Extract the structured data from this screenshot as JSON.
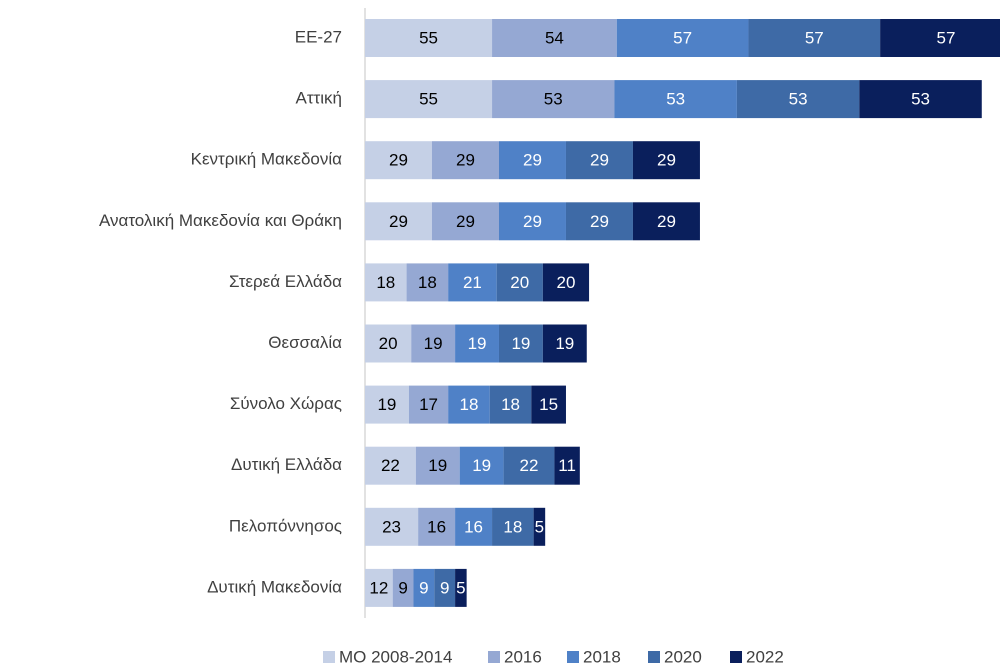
{
  "chart_data": {
    "type": "stacked-bar-horizontal",
    "categories": [
      "ΕΕ-27",
      "Αττική",
      "Κεντρική Μακεδονία",
      "Ανατολική Μακεδονία και Θράκη",
      "Στερεά Ελλάδα",
      "Θεσσαλία",
      "Σύνολο Χώρας",
      "Δυτική Ελλάδα",
      "Πελοπόννησος",
      "Δυτική Μακεδονία"
    ],
    "series": [
      {
        "name": "ΜΟ 2008-2014",
        "color": "#c5d0e6",
        "values": [
          55,
          55,
          29,
          29,
          18,
          20,
          19,
          22,
          23,
          12
        ]
      },
      {
        "name": "2016",
        "color": "#95a8d3",
        "values": [
          54,
          53,
          29,
          29,
          18,
          19,
          17,
          19,
          16,
          9
        ]
      },
      {
        "name": "2018",
        "color": "#4f81c7",
        "values": [
          57,
          53,
          29,
          29,
          21,
          19,
          18,
          19,
          16,
          9
        ]
      },
      {
        "name": "2020",
        "color": "#3e6aa6",
        "values": [
          57,
          53,
          29,
          29,
          20,
          19,
          18,
          22,
          18,
          9
        ]
      },
      {
        "name": "2022",
        "color": "#0a1f5c",
        "values": [
          57,
          53,
          29,
          29,
          20,
          19,
          15,
          11,
          5,
          5
        ]
      }
    ],
    "legend": "bottom"
  }
}
